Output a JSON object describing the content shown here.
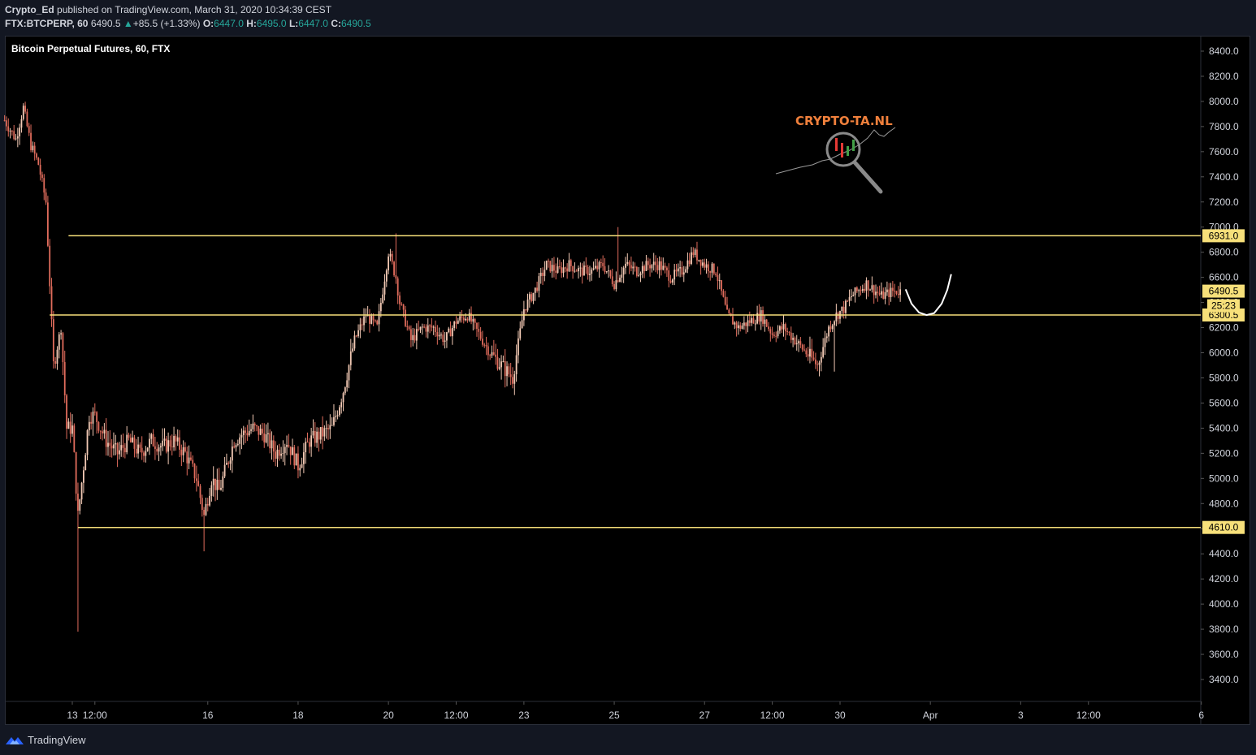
{
  "header": {
    "author": "Crypto_Ed",
    "published_text": "published on TradingView.com, March 31, 2020 10:34:39 CEST",
    "symbol": "FTX:BTCPERP, 60",
    "last_price": "6490.5",
    "change_arrow": "▲",
    "change": "+85.5 (+1.33%)",
    "o_label": "O:",
    "o_value": "6447.0",
    "h_label": "H:",
    "h_value": "6495.0",
    "l_label": "L:",
    "l_value": "6447.0",
    "c_label": "C:",
    "c_value": "6490.5"
  },
  "watermark": {
    "text": "CRYPTO-TA.NL",
    "color": "#f0803c"
  },
  "footer": {
    "brand": "TradingView",
    "logo_icon": "tradingview-logo-icon"
  },
  "colors": {
    "background": "#000000",
    "candle_up": "#f2c9b4",
    "candle_down": "#e06c5c",
    "levels": "#f7e07a",
    "drawing": "#ffffff"
  },
  "chart_data": {
    "type": "candlestick",
    "title": "Bitcoin Perpetual Futures, 60, FTX",
    "ylim": [
      3250,
      8500
    ],
    "price_axis_ticks": [
      8400.0,
      8200.0,
      8000.0,
      7800.0,
      7600.0,
      7400.0,
      7200.0,
      7000.0,
      6800.0,
      6600.0,
      6400.0,
      6200.0,
      6000.0,
      5800.0,
      5600.0,
      5400.0,
      5200.0,
      5000.0,
      4800.0,
      4600.0,
      4400.0,
      4200.0,
      4000.0,
      3800.0,
      3600.0,
      3400.0
    ],
    "price_axis_tick_labels": [
      "8400.0",
      "8200.0",
      "8000.0",
      "7800.0",
      "7600.0",
      "7400.0",
      "7200.0",
      "7000.0",
      "6800.0",
      "6600.0",
      "6400.0",
      "6200.0",
      "6000.0",
      "5800.0",
      "5600.0",
      "5400.0",
      "5200.0",
      "5000.0",
      "4800.0",
      "4600.0",
      "4400.0",
      "4200.0",
      "4000.0",
      "3800.0",
      "3600.0",
      "3400.0"
    ],
    "time_axis_ticks": [
      "13",
      "12:00",
      "16",
      "18",
      "20",
      "12:00",
      "23",
      "25",
      "27",
      "12:00",
      "30",
      "Apr",
      "3",
      "12:00",
      "6"
    ],
    "time_axis_hours": [
      0,
      12,
      72,
      120,
      168,
      204,
      240,
      288,
      336,
      372,
      408,
      456,
      504,
      540,
      600
    ],
    "x_range_hours": [
      -36,
      624
    ],
    "horizontal_levels": [
      {
        "price": 6931.0,
        "label": "6931.0",
        "from_hour": -2
      },
      {
        "price": 6300.5,
        "label": "6300.5",
        "from_hour": -12
      },
      {
        "price": 4610.0,
        "label": "4610.0",
        "from_hour": 3
      }
    ],
    "current_price": {
      "price": 6490.5,
      "label": "6490.5",
      "countdown": "25:23"
    },
    "projection_hours": [
      443,
      446,
      450,
      454,
      458,
      462,
      465,
      467
    ],
    "projection_prices": [
      6500,
      6390,
      6320,
      6300,
      6315,
      6390,
      6500,
      6620
    ],
    "price_path_hours": [
      -36,
      -30,
      -26,
      -22,
      -18,
      -14,
      -10,
      -6,
      -3,
      0,
      3,
      6,
      9,
      12,
      18,
      24,
      30,
      36,
      42,
      48,
      54,
      60,
      66,
      70,
      74,
      78,
      82,
      86,
      90,
      96,
      102,
      108,
      114,
      120,
      126,
      132,
      138,
      144,
      150,
      156,
      162,
      168,
      172,
      174,
      180,
      186,
      192,
      198,
      204,
      210,
      216,
      222,
      228,
      234,
      240,
      246,
      252,
      258,
      264,
      270,
      276,
      282,
      288,
      294,
      300,
      306,
      312,
      318,
      324,
      330,
      336,
      342,
      348,
      354,
      360,
      366,
      372,
      378,
      384,
      390,
      396,
      402,
      406,
      410,
      414,
      418,
      422,
      426,
      430,
      436,
      440
    ],
    "price_path_values": [
      7850,
      7700,
      7950,
      7650,
      7500,
      7200,
      5900,
      6200,
      5400,
      5400,
      4700,
      5100,
      5500,
      5500,
      5300,
      5200,
      5300,
      5200,
      5300,
      5250,
      5300,
      5200,
      5000,
      4700,
      5000,
      4900,
      5100,
      5300,
      5350,
      5400,
      5350,
      5200,
      5300,
      5100,
      5300,
      5350,
      5400,
      5700,
      6100,
      6300,
      6200,
      6800,
      6600,
      6400,
      6100,
      6200,
      6200,
      6100,
      6250,
      6300,
      6150,
      6000,
      5900,
      5800,
      6350,
      6500,
      6700,
      6650,
      6700,
      6650,
      6650,
      6700,
      6550,
      6700,
      6650,
      6700,
      6700,
      6600,
      6650,
      6800,
      6700,
      6650,
      6300,
      6200,
      6250,
      6300,
      6150,
      6200,
      6100,
      6000,
      5900,
      6200,
      6300,
      6350,
      6450,
      6500,
      6550,
      6500,
      6450,
      6490,
      6490
    ]
  }
}
